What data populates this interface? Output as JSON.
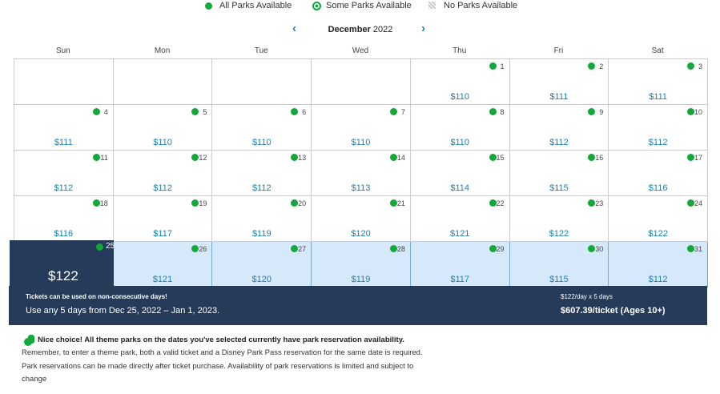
{
  "legend": [
    "All Parks Available",
    "Some Parks Available",
    "No Parks Available"
  ],
  "month": {
    "name": "December",
    "year": "2022"
  },
  "weekdays": [
    "Sun",
    "Mon",
    "Tue",
    "Wed",
    "Thu",
    "Fri",
    "Sat"
  ],
  "leading_blank_days": 4,
  "selected_day": 25,
  "days": [
    {
      "day": 1,
      "price": "$110"
    },
    {
      "day": 2,
      "price": "$111"
    },
    {
      "day": 3,
      "price": "$111"
    },
    {
      "day": 4,
      "price": "$111"
    },
    {
      "day": 5,
      "price": "$110"
    },
    {
      "day": 6,
      "price": "$110"
    },
    {
      "day": 7,
      "price": "$110"
    },
    {
      "day": 8,
      "price": "$110"
    },
    {
      "day": 9,
      "price": "$112"
    },
    {
      "day": 10,
      "price": "$112"
    },
    {
      "day": 11,
      "price": "$112"
    },
    {
      "day": 12,
      "price": "$112"
    },
    {
      "day": 13,
      "price": "$112"
    },
    {
      "day": 14,
      "price": "$113"
    },
    {
      "day": 15,
      "price": "$114"
    },
    {
      "day": 16,
      "price": "$115"
    },
    {
      "day": 17,
      "price": "$116"
    },
    {
      "day": 18,
      "price": "$116"
    },
    {
      "day": 19,
      "price": "$117"
    },
    {
      "day": 20,
      "price": "$119"
    },
    {
      "day": 21,
      "price": "$120"
    },
    {
      "day": 22,
      "price": "$121"
    },
    {
      "day": 23,
      "price": "$122"
    },
    {
      "day": 24,
      "price": "$122"
    },
    {
      "day": 25,
      "price": "$122"
    },
    {
      "day": 26,
      "price": "$121"
    },
    {
      "day": 27,
      "price": "$120"
    },
    {
      "day": 28,
      "price": "$119"
    },
    {
      "day": 29,
      "price": "$117"
    },
    {
      "day": 30,
      "price": "$115"
    },
    {
      "day": 31,
      "price": "$112"
    }
  ],
  "summary": {
    "note": "Tickets can be used on non-consecutive days!",
    "dates": "Use any 5 days from Dec 25, 2022 – Jan 1, 2023.",
    "per_day": "$122/day x 5 days",
    "total": "$607.39/ticket (Ages 10+)"
  },
  "message": {
    "headline": "Nice choice! All theme parks on the dates you've selected currently have park reservation availability.",
    "lines": [
      "Remember, to enter a theme park, both a valid ticket and a Disney Park Pass reservation for the same date is required.",
      "Park reservations can be made directly after ticket purchase. Availability of park reservations is limited and subject to",
      "change"
    ]
  }
}
